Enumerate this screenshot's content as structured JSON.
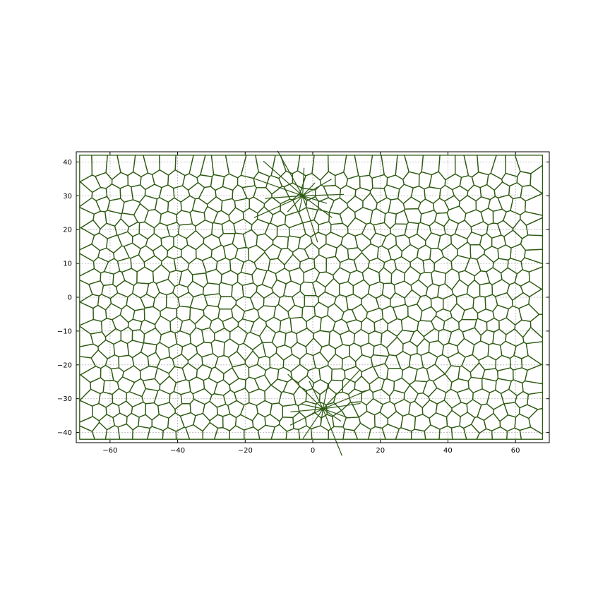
{
  "chart_data": {
    "type": "line",
    "description_free": true,
    "title": "",
    "xlabel": "",
    "ylabel": "",
    "xlim": [
      -70,
      70
    ],
    "ylim": [
      -43,
      43
    ],
    "grid": true,
    "xticks": [
      -60,
      -40,
      -20,
      0,
      20,
      40,
      60
    ],
    "yticks": [
      -40,
      -30,
      -20,
      -10,
      0,
      10,
      20,
      30,
      40
    ],
    "xtick_labels": [
      "−60",
      "−40",
      "−20",
      "0",
      "20",
      "40",
      "60"
    ],
    "ytick_labels": [
      "−40",
      "−30",
      "−20",
      "−10",
      "0",
      "10",
      "20",
      "30",
      "40"
    ],
    "series": [
      {
        "color": "#2e5a12",
        "x_extent": [
          -69,
          68
        ],
        "y_extent": [
          -42,
          42
        ],
        "collapse_points": [
          [
            -3,
            30
          ],
          [
            3,
            -33
          ]
        ]
      }
    ]
  }
}
